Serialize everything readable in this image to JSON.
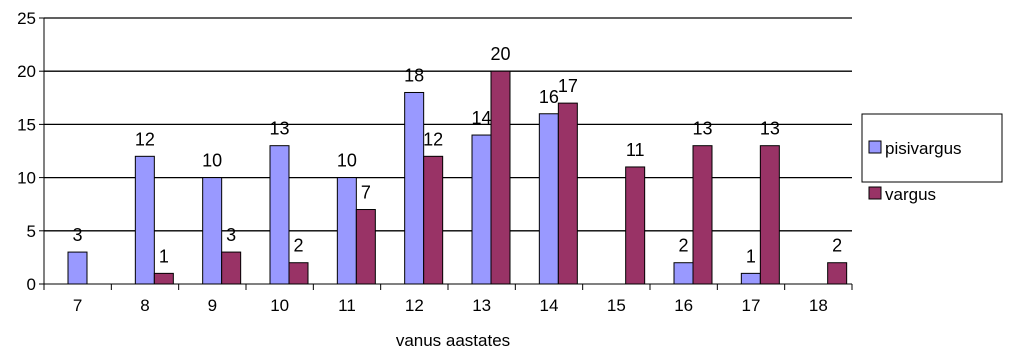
{
  "chart_data": {
    "type": "bar",
    "title": "",
    "xlabel": "vanus aastates",
    "ylabel": "",
    "categories": [
      "7",
      "8",
      "9",
      "10",
      "11",
      "12",
      "13",
      "14",
      "15",
      "16",
      "17",
      "18"
    ],
    "series": [
      {
        "name": "pisivargus",
        "color": "#9999ff",
        "values": [
          3,
          12,
          10,
          13,
          10,
          18,
          14,
          16,
          0,
          2,
          1,
          0
        ]
      },
      {
        "name": "vargus",
        "color": "#993366",
        "values": [
          0,
          1,
          3,
          2,
          7,
          12,
          20,
          17,
          11,
          13,
          13,
          2
        ]
      }
    ],
    "data_labels": [
      [
        "3",
        "12",
        "10",
        "13",
        "10",
        "18",
        "14",
        "16",
        "",
        "2",
        "1",
        ""
      ],
      [
        "",
        "1",
        "3",
        "2",
        "7",
        "12",
        "20",
        "17",
        "11",
        "13",
        "13",
        "2"
      ]
    ],
    "ylim": [
      0,
      25
    ],
    "yticks": [
      0,
      5,
      10,
      15,
      20,
      25
    ],
    "grid": true,
    "legend": "right"
  }
}
